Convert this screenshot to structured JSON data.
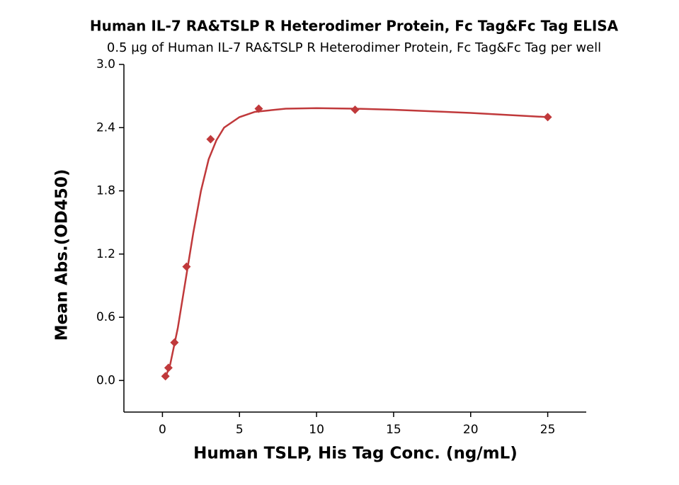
{
  "chart_data": {
    "type": "scatter",
    "title": "Human IL-7 RA&TSLP R Heterodimer Protein, Fc Tag&Fc Tag ELISA",
    "subtitle": "0.5 μg of Human IL-7 RA&TSLP R Heterodimer Protein, Fc Tag&Fc Tag per well",
    "x_label": "Human TSLP, His Tag Conc. (ng/mL)",
    "y_label": "Mean Abs.(OD450)",
    "xlim": [
      -2.5,
      27.5
    ],
    "ylim": [
      -0.3,
      3.0
    ],
    "xticks": [
      0,
      5,
      10,
      15,
      20,
      25
    ],
    "yticks": [
      {
        "value": 0,
        "label": "0.0"
      },
      0.6,
      1.2,
      1.8,
      2.4,
      {
        "value": 3,
        "label": "3.0"
      }
    ],
    "series": [
      {
        "type": "scatter",
        "color": "#c0393b",
        "x": [
          0.195,
          0.39,
          0.78,
          1.5625,
          3.125,
          6.25,
          12.5,
          25
        ],
        "values": [
          0.04,
          0.12,
          0.36,
          1.08,
          2.29,
          2.58,
          2.57,
          2.5
        ]
      },
      {
        "type": "line",
        "color": "#c0393b",
        "x": [
          0.2,
          0.5,
          1,
          1.5,
          2,
          2.5,
          3,
          3.5,
          4,
          5,
          6,
          8,
          10,
          12.5,
          15,
          20,
          25
        ],
        "values": [
          0.03,
          0.15,
          0.5,
          0.95,
          1.4,
          1.8,
          2.1,
          2.28,
          2.4,
          2.5,
          2.55,
          2.58,
          2.585,
          2.58,
          2.57,
          2.54,
          2.5
        ]
      }
    ]
  }
}
